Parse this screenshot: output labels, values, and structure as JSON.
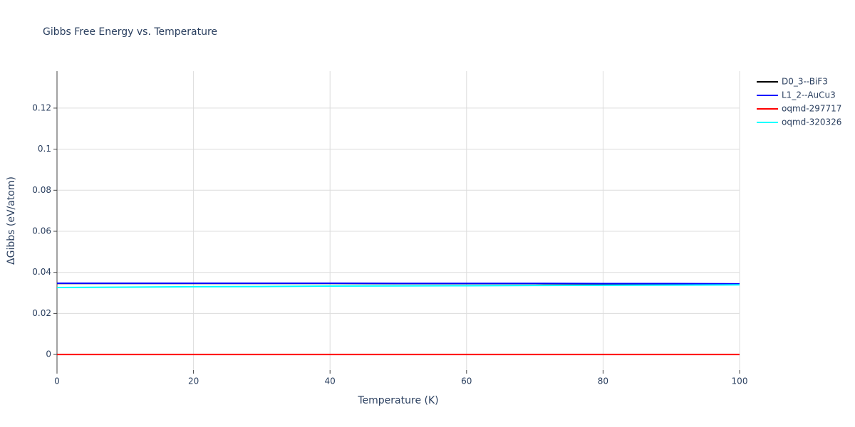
{
  "chart_data": {
    "type": "line",
    "title": "Gibbs Free Energy vs. Temperature",
    "x_label": "Temperature (K)",
    "y_label": "ΔGibbs (eV/atom)",
    "x": [
      0,
      10,
      20,
      30,
      40,
      50,
      60,
      70,
      80,
      90,
      100
    ],
    "series": [
      {
        "name": "D0_3--BiF3",
        "color": "#000000",
        "values": [
          0.0346,
          0.0346,
          0.0346,
          0.0346,
          0.0346,
          0.0345,
          0.0345,
          0.0345,
          0.0344,
          0.0344,
          0.0343
        ]
      },
      {
        "name": "L1_2--AuCu3",
        "color": "#0000ff",
        "values": [
          0.0347,
          0.0347,
          0.0347,
          0.0347,
          0.0347,
          0.0346,
          0.0346,
          0.0346,
          0.0345,
          0.0345,
          0.0344
        ]
      },
      {
        "name": "oqmd-297717",
        "color": "#ff0000",
        "values": [
          0,
          0,
          0,
          0,
          0,
          0,
          0,
          0,
          0,
          0,
          0
        ]
      },
      {
        "name": "oqmd-320326",
        "color": "#00ffff",
        "values": [
          0.0326,
          0.0328,
          0.033,
          0.0331,
          0.0333,
          0.0334,
          0.0335,
          0.0336,
          0.0337,
          0.0338,
          0.0339
        ]
      }
    ],
    "xlim": [
      0,
      100
    ],
    "xticks": [
      0,
      20,
      40,
      60,
      80,
      100
    ],
    "ylim": [
      -0.0076,
      0.138
    ],
    "yticks": [
      0,
      0.02,
      0.04,
      0.06,
      0.08,
      0.1,
      0.12
    ],
    "grid": true,
    "legend": "top-right"
  }
}
